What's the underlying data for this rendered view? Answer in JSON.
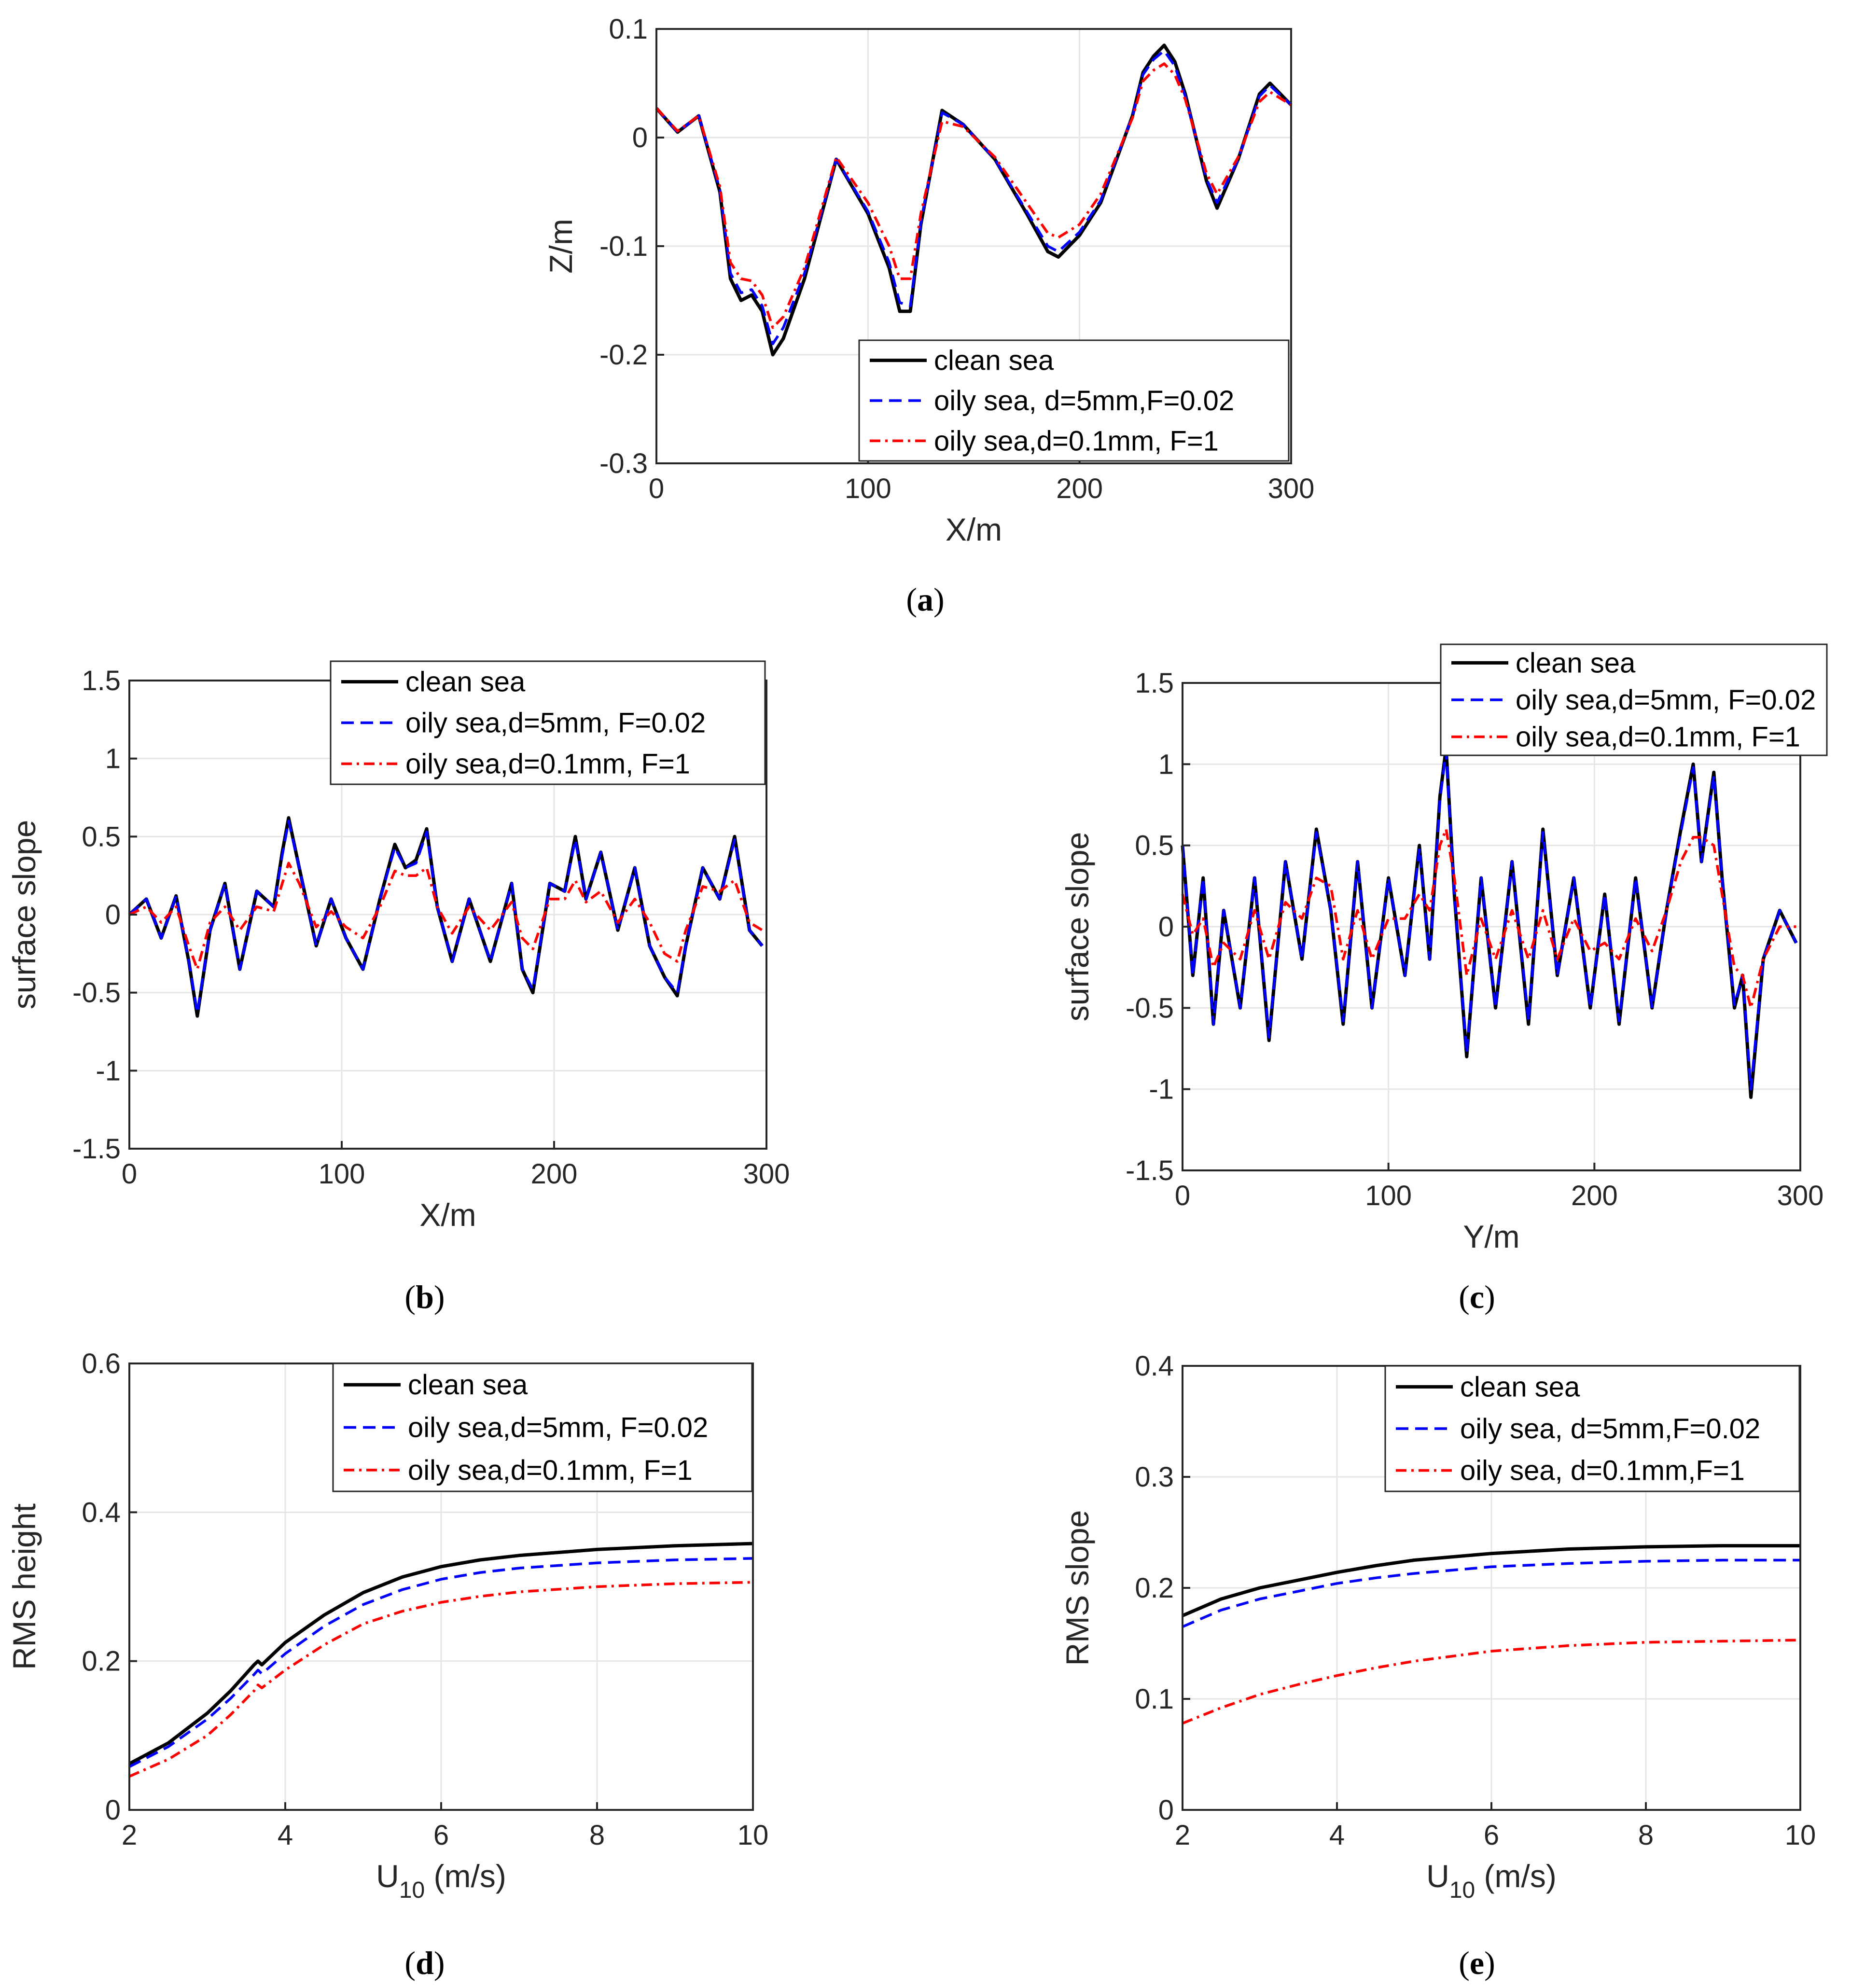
{
  "colors": {
    "clean": "#000000",
    "oily5": "#0000ff",
    "oily01": "#ff0000",
    "grid": "#e6e6e6",
    "axis": "#262626"
  },
  "panels": {
    "a": {
      "label_pre": "(",
      "label_letter": "a",
      "label_post": ")"
    },
    "b": {
      "label_pre": "(",
      "label_letter": "b",
      "label_post": ")"
    },
    "c": {
      "label_pre": "(",
      "label_letter": "c",
      "label_post": ")"
    },
    "d": {
      "label_pre": "(",
      "label_letter": "d",
      "label_post": ")"
    },
    "e": {
      "label_pre": "(",
      "label_letter": "e",
      "label_post": ")"
    }
  },
  "chart_data": [
    {
      "id": "a",
      "type": "line",
      "xlabel": "X/m",
      "ylabel": "Z/m",
      "xlim": [
        0,
        300
      ],
      "ylim": [
        -0.3,
        0.1
      ],
      "xticks": [
        0,
        100,
        200,
        300
      ],
      "yticks": [
        -0.3,
        -0.2,
        -0.1,
        0,
        0.1
      ],
      "xtick_labels": [
        "0",
        "100",
        "200",
        "300"
      ],
      "ytick_labels": [
        "-0.3",
        "-0.2",
        "-0.1",
        "0",
        "0.1"
      ],
      "grid": true,
      "legend_position": "bottom-right",
      "x": [
        0,
        10,
        20,
        30,
        35,
        40,
        45,
        50,
        55,
        60,
        70,
        85,
        100,
        110,
        115,
        120,
        125,
        135,
        145,
        160,
        175,
        185,
        190,
        200,
        210,
        225,
        230,
        235,
        240,
        245,
        250,
        260,
        265,
        275,
        285,
        290,
        300
      ],
      "series": [
        {
          "name": "clean sea",
          "style": "solid",
          "color_key": "clean",
          "values": [
            0.027,
            0.005,
            0.02,
            -0.05,
            -0.13,
            -0.15,
            -0.145,
            -0.16,
            -0.2,
            -0.185,
            -0.13,
            -0.02,
            -0.07,
            -0.12,
            -0.16,
            -0.16,
            -0.08,
            0.025,
            0.012,
            -0.02,
            -0.07,
            -0.105,
            -0.11,
            -0.09,
            -0.06,
            0.02,
            0.06,
            0.075,
            0.085,
            0.07,
            0.04,
            -0.04,
            -0.065,
            -0.02,
            0.04,
            0.05,
            0.03
          ]
        },
        {
          "name": "oily sea, d=5mm,F=0.02",
          "style": "dashed",
          "color_key": "oily5",
          "values": [
            0.027,
            0.005,
            0.02,
            -0.048,
            -0.125,
            -0.143,
            -0.14,
            -0.155,
            -0.19,
            -0.175,
            -0.125,
            -0.02,
            -0.068,
            -0.115,
            -0.152,
            -0.155,
            -0.078,
            0.023,
            0.012,
            -0.02,
            -0.068,
            -0.1,
            -0.105,
            -0.087,
            -0.058,
            0.02,
            0.058,
            0.072,
            0.08,
            0.066,
            0.038,
            -0.038,
            -0.06,
            -0.02,
            0.038,
            0.048,
            0.03
          ]
        },
        {
          "name": "oily sea,d=0.1mm, F=1",
          "style": "dashdot",
          "color_key": "oily01",
          "values": [
            0.027,
            0.006,
            0.02,
            -0.045,
            -0.115,
            -0.13,
            -0.132,
            -0.145,
            -0.175,
            -0.165,
            -0.12,
            -0.018,
            -0.06,
            -0.1,
            -0.13,
            -0.13,
            -0.07,
            0.015,
            0.01,
            -0.018,
            -0.06,
            -0.088,
            -0.092,
            -0.08,
            -0.052,
            0.018,
            0.052,
            0.062,
            0.068,
            0.058,
            0.035,
            -0.033,
            -0.052,
            -0.018,
            0.033,
            0.042,
            0.03
          ]
        }
      ]
    },
    {
      "id": "b",
      "type": "line",
      "xlabel": "X/m",
      "ylabel": "surface slope",
      "xlim": [
        0,
        300
      ],
      "ylim": [
        -1.5,
        1.5
      ],
      "xticks": [
        0,
        100,
        200,
        300
      ],
      "yticks": [
        -1.5,
        -1,
        -0.5,
        0,
        0.5,
        1,
        1.5
      ],
      "xtick_labels": [
        "0",
        "100",
        "200",
        "300"
      ],
      "ytick_labels": [
        "-1.5",
        "-1",
        "-0.5",
        "0",
        "0.5",
        "1",
        "1.5"
      ],
      "grid": true,
      "legend_position": "top-right",
      "x": [
        0,
        8,
        15,
        22,
        28,
        32,
        38,
        45,
        52,
        60,
        68,
        72,
        75,
        80,
        88,
        95,
        102,
        110,
        118,
        125,
        130,
        135,
        140,
        145,
        152,
        160,
        170,
        180,
        185,
        190,
        198,
        205,
        210,
        215,
        222,
        230,
        238,
        245,
        252,
        258,
        262,
        270,
        278,
        285,
        292,
        298
      ],
      "series": [
        {
          "name": "clean sea",
          "style": "solid",
          "color_key": "clean",
          "values": [
            0,
            0.1,
            -0.15,
            0.12,
            -0.3,
            -0.65,
            -0.1,
            0.2,
            -0.35,
            0.15,
            0.05,
            0.4,
            0.62,
            0.3,
            -0.2,
            0.1,
            -0.15,
            -0.35,
            0.1,
            0.45,
            0.3,
            0.35,
            0.55,
            0.05,
            -0.3,
            0.1,
            -0.3,
            0.2,
            -0.35,
            -0.5,
            0.2,
            0.15,
            0.5,
            0.1,
            0.4,
            -0.1,
            0.3,
            -0.2,
            -0.4,
            -0.52,
            -0.2,
            0.3,
            0.1,
            0.5,
            -0.1,
            -0.2
          ]
        },
        {
          "name": "oily sea,d=5mm, F=0.02",
          "style": "dashed",
          "color_key": "oily5",
          "values": [
            0,
            0.1,
            -0.15,
            0.12,
            -0.3,
            -0.63,
            -0.1,
            0.2,
            -0.35,
            0.15,
            0.05,
            0.38,
            0.6,
            0.3,
            -0.2,
            0.1,
            -0.15,
            -0.35,
            0.1,
            0.43,
            0.3,
            0.33,
            0.53,
            0.05,
            -0.3,
            0.1,
            -0.3,
            0.2,
            -0.35,
            -0.48,
            0.2,
            0.15,
            0.48,
            0.1,
            0.4,
            -0.1,
            0.3,
            -0.2,
            -0.4,
            -0.5,
            -0.2,
            0.3,
            0.1,
            0.48,
            -0.1,
            -0.2
          ]
        },
        {
          "name": "oily sea,d=0.1mm, F=1",
          "style": "dashdot",
          "color_key": "oily01",
          "values": [
            0,
            0.05,
            -0.05,
            0.05,
            -0.2,
            -0.35,
            -0.05,
            0.05,
            -0.1,
            0.05,
            0.02,
            0.2,
            0.33,
            0.2,
            -0.08,
            0.02,
            -0.08,
            -0.15,
            0.05,
            0.28,
            0.25,
            0.25,
            0.3,
            0.05,
            -0.12,
            0.05,
            -0.1,
            0.08,
            -0.15,
            -0.22,
            0.1,
            0.1,
            0.22,
            0.08,
            0.15,
            -0.05,
            0.1,
            -0.05,
            -0.25,
            -0.3,
            -0.1,
            0.18,
            0.15,
            0.22,
            -0.05,
            -0.1
          ]
        }
      ]
    },
    {
      "id": "c",
      "type": "line",
      "xlabel": "Y/m",
      "ylabel": "surface slope",
      "xlim": [
        0,
        300
      ],
      "ylim": [
        -1.5,
        1.5
      ],
      "xticks": [
        0,
        100,
        200,
        300
      ],
      "yticks": [
        -1.5,
        -1,
        -0.5,
        0,
        0.5,
        1,
        1.5
      ],
      "xtick_labels": [
        "0",
        "100",
        "200",
        "300"
      ],
      "ytick_labels": [
        "-1.5",
        "-1",
        "-0.5",
        "0",
        "0.5",
        "1",
        "1.5"
      ],
      "grid": true,
      "legend_position": "top-right",
      "x": [
        0,
        5,
        10,
        15,
        20,
        28,
        35,
        42,
        50,
        58,
        65,
        72,
        78,
        85,
        92,
        100,
        108,
        115,
        120,
        125,
        128,
        132,
        138,
        145,
        152,
        160,
        168,
        175,
        182,
        190,
        198,
        205,
        212,
        220,
        228,
        235,
        242,
        248,
        252,
        258,
        262,
        268,
        272,
        276,
        282,
        290,
        298
      ],
      "series": [
        {
          "name": "clean sea",
          "style": "solid",
          "color_key": "clean",
          "values": [
            0.5,
            -0.3,
            0.3,
            -0.6,
            0.1,
            -0.5,
            0.3,
            -0.7,
            0.4,
            -0.2,
            0.6,
            0.1,
            -0.6,
            0.4,
            -0.5,
            0.3,
            -0.3,
            0.5,
            -0.2,
            0.8,
            1.1,
            0.2,
            -0.8,
            0.3,
            -0.5,
            0.4,
            -0.6,
            0.6,
            -0.3,
            0.3,
            -0.5,
            0.2,
            -0.6,
            0.3,
            -0.5,
            0.1,
            0.6,
            1.0,
            0.4,
            0.95,
            0.3,
            -0.5,
            -0.3,
            -1.05,
            -0.2,
            0.1,
            -0.1
          ]
        },
        {
          "name": "oily sea,d=5mm, F=0.02",
          "style": "dashed",
          "color_key": "oily5",
          "values": [
            0.5,
            -0.3,
            0.3,
            -0.6,
            0.1,
            -0.5,
            0.3,
            -0.68,
            0.4,
            -0.2,
            0.58,
            0.1,
            -0.58,
            0.4,
            -0.5,
            0.3,
            -0.3,
            0.48,
            -0.2,
            0.78,
            1.08,
            0.2,
            -0.78,
            0.3,
            -0.5,
            0.4,
            -0.58,
            0.58,
            -0.3,
            0.3,
            -0.5,
            0.2,
            -0.58,
            0.3,
            -0.5,
            0.1,
            0.58,
            0.98,
            0.4,
            0.93,
            0.3,
            -0.48,
            -0.3,
            -1.0,
            -0.2,
            0.1,
            -0.1
          ]
        },
        {
          "name": "oily sea,d=0.1mm, F=1",
          "style": "dashdot",
          "color_key": "oily01",
          "values": [
            0.2,
            -0.05,
            0.05,
            -0.25,
            -0.1,
            -0.2,
            0.1,
            -0.2,
            0.15,
            0.05,
            0.3,
            0.25,
            -0.2,
            0.1,
            -0.2,
            0.05,
            0.05,
            0.2,
            0.1,
            0.5,
            0.6,
            0.3,
            -0.3,
            0.05,
            -0.2,
            0.1,
            -0.2,
            0.1,
            -0.2,
            0.05,
            -0.15,
            -0.1,
            -0.2,
            0.05,
            -0.15,
            0.1,
            0.4,
            0.55,
            0.55,
            0.5,
            0.2,
            -0.25,
            -0.3,
            -0.5,
            -0.2,
            0.0,
            0.0
          ]
        }
      ]
    },
    {
      "id": "d",
      "type": "line",
      "xlabel_main": "U",
      "xlabel_sub": "10",
      "xlabel_rest": " (m/s)",
      "ylabel": "RMS height",
      "xlim": [
        2,
        10
      ],
      "ylim": [
        0,
        0.6
      ],
      "xticks": [
        2,
        4,
        6,
        8,
        10
      ],
      "yticks": [
        0,
        0.2,
        0.4,
        0.6
      ],
      "xtick_labels": [
        "2",
        "4",
        "6",
        "8",
        "10"
      ],
      "ytick_labels": [
        "0",
        "0.2",
        "0.4",
        "0.6"
      ],
      "grid": true,
      "legend_position": "top-right",
      "x": [
        2,
        2.5,
        3,
        3.3,
        3.6,
        3.65,
        3.7,
        4,
        4.5,
        5,
        5.5,
        6,
        6.5,
        7,
        8,
        9,
        10
      ],
      "series": [
        {
          "name": "clean sea",
          "style": "solid",
          "color_key": "clean",
          "values": [
            0.062,
            0.09,
            0.13,
            0.16,
            0.195,
            0.2,
            0.195,
            0.225,
            0.262,
            0.292,
            0.313,
            0.327,
            0.336,
            0.342,
            0.35,
            0.355,
            0.358
          ]
        },
        {
          "name": "oily sea,d=5mm, F=0.02",
          "style": "dashed",
          "color_key": "oily5",
          "values": [
            0.058,
            0.085,
            0.122,
            0.15,
            0.182,
            0.188,
            0.183,
            0.21,
            0.247,
            0.276,
            0.296,
            0.31,
            0.319,
            0.325,
            0.332,
            0.336,
            0.338
          ]
        },
        {
          "name": "oily sea,d=0.1mm, F=1",
          "style": "dashdot",
          "color_key": "oily01",
          "values": [
            0.045,
            0.068,
            0.1,
            0.128,
            0.16,
            0.168,
            0.164,
            0.188,
            0.222,
            0.25,
            0.267,
            0.279,
            0.287,
            0.293,
            0.3,
            0.304,
            0.306
          ]
        }
      ]
    },
    {
      "id": "e",
      "type": "line",
      "xlabel_main": "U",
      "xlabel_sub": "10",
      "xlabel_rest": " (m/s)",
      "ylabel": "RMS slope",
      "xlim": [
        2,
        10
      ],
      "ylim": [
        0,
        0.4
      ],
      "xticks": [
        2,
        4,
        6,
        8,
        10
      ],
      "yticks": [
        0,
        0.1,
        0.2,
        0.3,
        0.4
      ],
      "xtick_labels": [
        "2",
        "4",
        "6",
        "8",
        "10"
      ],
      "ytick_labels": [
        "0",
        "0.1",
        "0.2",
        "0.3",
        "0.4"
      ],
      "grid": true,
      "legend_position": "top-right",
      "x": [
        2,
        2.5,
        3,
        3.5,
        4,
        4.5,
        5,
        6,
        7,
        8,
        9,
        10
      ],
      "series": [
        {
          "name": "clean sea",
          "style": "solid",
          "color_key": "clean",
          "values": [
            0.175,
            0.19,
            0.2,
            0.207,
            0.214,
            0.22,
            0.225,
            0.231,
            0.235,
            0.237,
            0.238,
            0.238
          ]
        },
        {
          "name": "oily sea, d=5mm,F=0.02",
          "style": "dashed",
          "color_key": "oily5",
          "values": [
            0.165,
            0.18,
            0.19,
            0.197,
            0.204,
            0.209,
            0.213,
            0.219,
            0.222,
            0.224,
            0.225,
            0.225
          ]
        },
        {
          "name": "oily sea, d=0.1mm,F=1",
          "style": "dashdot",
          "color_key": "oily01",
          "values": [
            0.078,
            0.092,
            0.104,
            0.113,
            0.121,
            0.128,
            0.134,
            0.143,
            0.148,
            0.151,
            0.152,
            0.153
          ]
        }
      ]
    }
  ]
}
